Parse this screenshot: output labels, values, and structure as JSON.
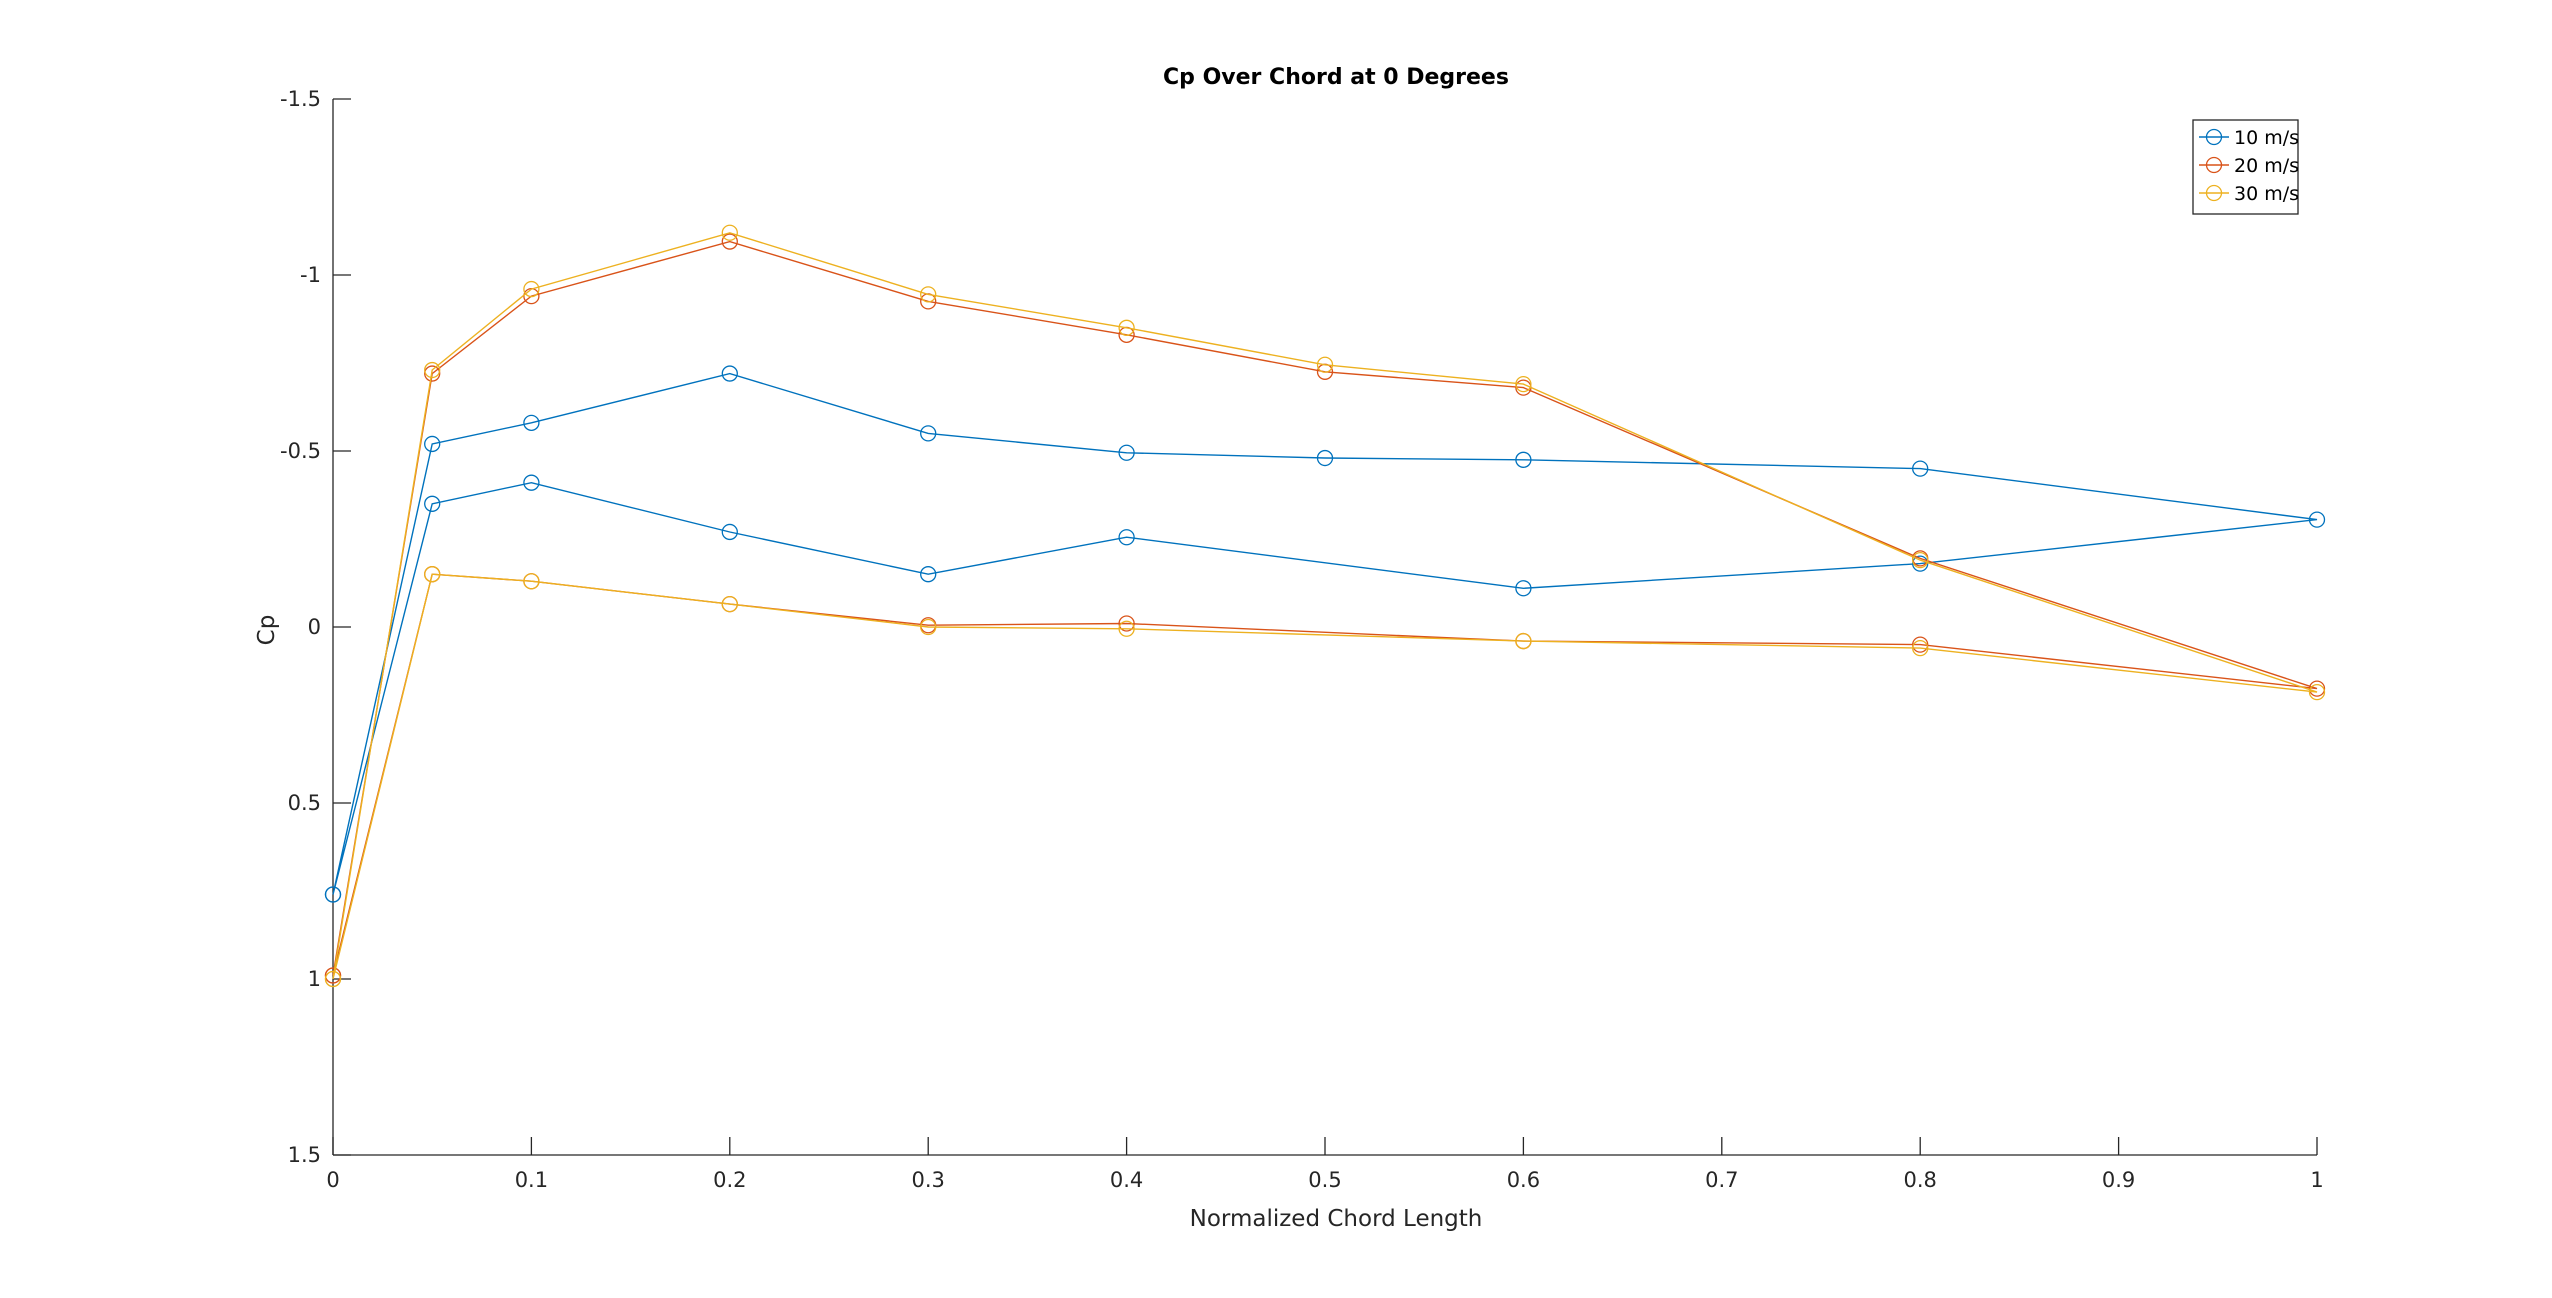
{
  "chart_data": {
    "type": "line",
    "title": "Cp Over Chord at 0 Degrees",
    "xlabel": "Normalized Chord Length",
    "ylabel": "Cp",
    "xlim": [
      0,
      1
    ],
    "ylim": [
      -1.5,
      1.5
    ],
    "y_reversed": true,
    "grid": false,
    "legend_position": "top-right",
    "x_ticks": [
      0,
      0.1,
      0.2,
      0.3,
      0.4,
      0.5,
      0.6,
      0.7,
      0.8,
      0.9,
      1
    ],
    "x_tick_labels": [
      "0",
      "0.1",
      "0.2",
      "0.3",
      "0.4",
      "0.5",
      "0.6",
      "0.7",
      "0.8",
      "0.9",
      "1"
    ],
    "y_ticks": [
      -1.5,
      -1,
      -0.5,
      0,
      0.5,
      1,
      1.5
    ],
    "y_tick_labels": [
      "-1.5",
      "-1",
      "-0.5",
      "0",
      "0.5",
      "1",
      "1.5"
    ],
    "marker": "circle",
    "series": [
      {
        "name": "10 m/s",
        "color": "#0072bd",
        "x": [
          0,
          0.05,
          0.1,
          0.2,
          0.3,
          0.4,
          0.6,
          0.8,
          1,
          0.8,
          0.6,
          0.5,
          0.4,
          0.3,
          0.2,
          0.1,
          0.05,
          0
        ],
        "y": [
          0.76,
          -0.35,
          -0.41,
          -0.27,
          -0.15,
          -0.255,
          -0.11,
          -0.18,
          -0.305,
          -0.45,
          -0.475,
          -0.48,
          -0.495,
          -0.55,
          -0.72,
          -0.58,
          -0.52,
          0.76
        ]
      },
      {
        "name": "20 m/s",
        "color": "#d95319",
        "x": [
          0,
          0.05,
          0.1,
          0.2,
          0.3,
          0.4,
          0.6,
          0.8,
          1,
          0.8,
          0.6,
          0.5,
          0.4,
          0.3,
          0.2,
          0.1,
          0.05,
          0
        ],
        "y": [
          0.99,
          -0.15,
          -0.13,
          -0.065,
          -0.005,
          -0.01,
          0.04,
          0.05,
          0.175,
          -0.195,
          -0.68,
          -0.725,
          -0.83,
          -0.925,
          -1.095,
          -0.94,
          -0.72,
          0.99
        ]
      },
      {
        "name": "30 m/s",
        "color": "#edb120",
        "x": [
          0,
          0.05,
          0.1,
          0.2,
          0.3,
          0.4,
          0.6,
          0.8,
          1,
          0.8,
          0.6,
          0.5,
          0.4,
          0.3,
          0.2,
          0.1,
          0.05,
          0
        ],
        "y": [
          1.0,
          -0.15,
          -0.13,
          -0.065,
          0.0,
          0.005,
          0.04,
          0.06,
          0.185,
          -0.19,
          -0.69,
          -0.745,
          -0.85,
          -0.945,
          -1.12,
          -0.96,
          -0.73,
          1.0
        ]
      }
    ]
  }
}
